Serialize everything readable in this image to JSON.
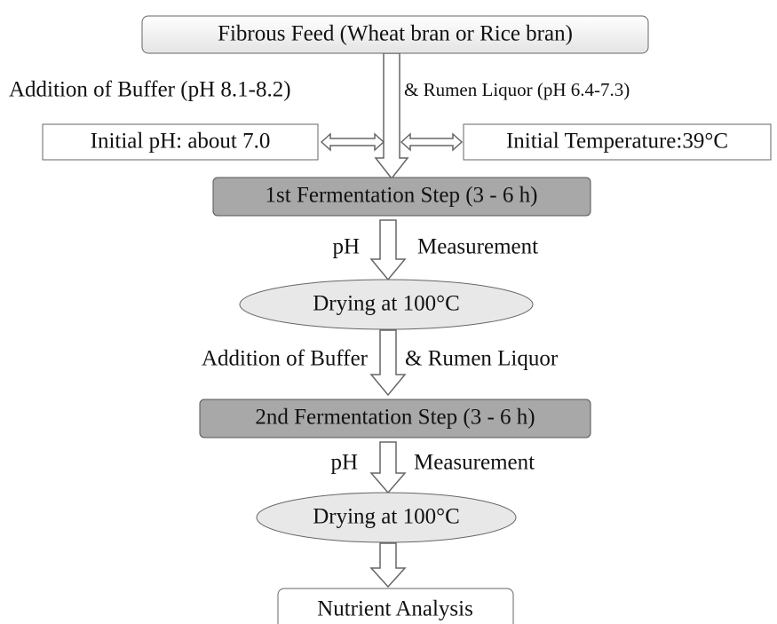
{
  "nodes": [
    {
      "label": "Fibrous Feed (Wheat bran or Rice bran)"
    },
    {
      "label": "Initial pH: about 7.0"
    },
    {
      "label": "Initial Temperature:39°C"
    },
    {
      "label": "1st Fermentation Step (3 - 6 h)"
    },
    {
      "label": "Drying at 100°C"
    },
    {
      "label": "2nd Fermentation Step (3 - 6 h)"
    },
    {
      "label": "Drying at 100°C"
    },
    {
      "label": "Nutrient Analysis"
    }
  ],
  "edge_labels": [
    {
      "left": "Addition of Buffer (pH 8.1-8.2)",
      "right": "& Rumen Liquor (pH 6.4-7.3)"
    },
    {
      "left": "pH",
      "right": "Measurement"
    },
    {
      "left": "Addition of Buffer",
      "right": "& Rumen Liquor"
    },
    {
      "left": "pH",
      "right": "Measurement"
    }
  ]
}
